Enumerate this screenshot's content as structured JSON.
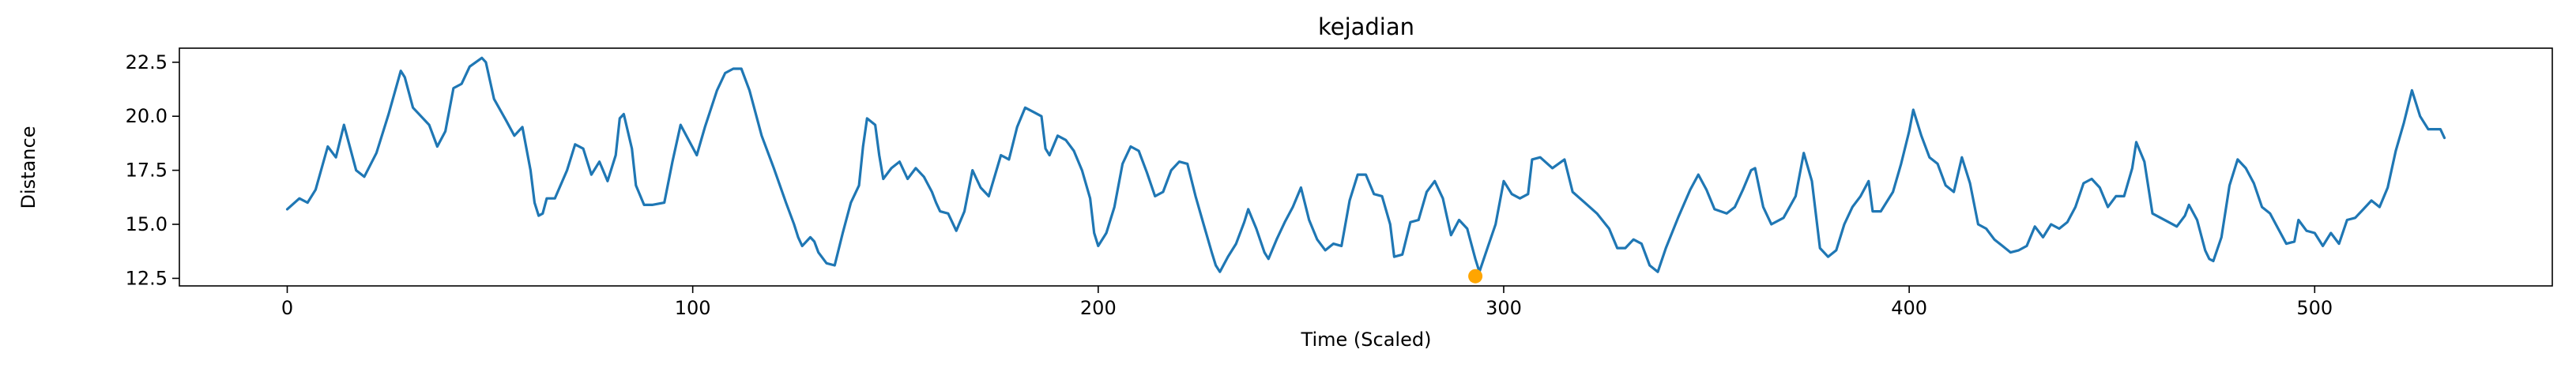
{
  "chart_data": {
    "type": "line",
    "title": "kejadian",
    "xlabel": "Time (Scaled)",
    "ylabel": "Distance",
    "xlim": [
      -26.6,
      558.6
    ],
    "ylim": [
      12.15,
      23.15
    ],
    "xticks": [
      0,
      100,
      200,
      300,
      400,
      500
    ],
    "yticks": [
      12.5,
      15.0,
      17.5,
      20.0,
      22.5
    ],
    "ytick_labels": [
      "12.5",
      "15.0",
      "17.5",
      "20.0",
      "22.5"
    ],
    "grid": false,
    "line_color": "#1f77b4",
    "marker_color": "#ffa500",
    "highlight": {
      "x": 293,
      "y": 12.6
    },
    "series": [
      {
        "points": [
          [
            0,
            15.7
          ],
          [
            3,
            16.2
          ],
          [
            5,
            16.0
          ],
          [
            7,
            16.6
          ],
          [
            10,
            18.6
          ],
          [
            12,
            18.1
          ],
          [
            14,
            19.6
          ],
          [
            17,
            17.5
          ],
          [
            19,
            17.2
          ],
          [
            22,
            18.3
          ],
          [
            25,
            20.1
          ],
          [
            28,
            22.1
          ],
          [
            29,
            21.8
          ],
          [
            31,
            20.4
          ],
          [
            35,
            19.6
          ],
          [
            37,
            18.6
          ],
          [
            39,
            19.3
          ],
          [
            41,
            21.3
          ],
          [
            43,
            21.5
          ],
          [
            45,
            22.3
          ],
          [
            48,
            22.7
          ],
          [
            49,
            22.5
          ],
          [
            51,
            20.8
          ],
          [
            54,
            19.8
          ],
          [
            56,
            19.1
          ],
          [
            58,
            19.5
          ],
          [
            60,
            17.5
          ],
          [
            61,
            16.0
          ],
          [
            62,
            15.4
          ],
          [
            63,
            15.5
          ],
          [
            64,
            16.2
          ],
          [
            66,
            16.2
          ],
          [
            69,
            17.5
          ],
          [
            71,
            18.7
          ],
          [
            73,
            18.5
          ],
          [
            75,
            17.3
          ],
          [
            77,
            17.9
          ],
          [
            79,
            17.0
          ],
          [
            81,
            18.2
          ],
          [
            82,
            19.9
          ],
          [
            83,
            20.1
          ],
          [
            85,
            18.5
          ],
          [
            86,
            16.8
          ],
          [
            88,
            15.9
          ],
          [
            90,
            15.9
          ],
          [
            93,
            16.0
          ],
          [
            95,
            17.9
          ],
          [
            97,
            19.6
          ],
          [
            99,
            18.9
          ],
          [
            101,
            18.2
          ],
          [
            103,
            19.5
          ],
          [
            106,
            21.2
          ],
          [
            108,
            22.0
          ],
          [
            110,
            22.2
          ],
          [
            112,
            22.2
          ],
          [
            114,
            21.2
          ],
          [
            117,
            19.1
          ],
          [
            120,
            17.6
          ],
          [
            123,
            16.0
          ],
          [
            125,
            15.0
          ],
          [
            126,
            14.4
          ],
          [
            127,
            14.0
          ],
          [
            129,
            14.4
          ],
          [
            130,
            14.2
          ],
          [
            131,
            13.7
          ],
          [
            133,
            13.2
          ],
          [
            135,
            13.1
          ],
          [
            137,
            14.6
          ],
          [
            139,
            16.0
          ],
          [
            141,
            16.8
          ],
          [
            142,
            18.6
          ],
          [
            143,
            19.9
          ],
          [
            145,
            19.6
          ],
          [
            146,
            18.2
          ],
          [
            147,
            17.1
          ],
          [
            149,
            17.6
          ],
          [
            151,
            17.9
          ],
          [
            153,
            17.1
          ],
          [
            155,
            17.6
          ],
          [
            157,
            17.2
          ],
          [
            159,
            16.5
          ],
          [
            160,
            16.0
          ],
          [
            161,
            15.6
          ],
          [
            163,
            15.5
          ],
          [
            165,
            14.7
          ],
          [
            167,
            15.6
          ],
          [
            169,
            17.5
          ],
          [
            171,
            16.7
          ],
          [
            173,
            16.3
          ],
          [
            176,
            18.2
          ],
          [
            178,
            18.0
          ],
          [
            180,
            19.5
          ],
          [
            182,
            20.4
          ],
          [
            184,
            20.2
          ],
          [
            186,
            20.0
          ],
          [
            187,
            18.5
          ],
          [
            188,
            18.2
          ],
          [
            190,
            19.1
          ],
          [
            192,
            18.9
          ],
          [
            194,
            18.4
          ],
          [
            196,
            17.5
          ],
          [
            198,
            16.2
          ],
          [
            199,
            14.6
          ],
          [
            200,
            14.0
          ],
          [
            202,
            14.6
          ],
          [
            204,
            15.8
          ],
          [
            206,
            17.8
          ],
          [
            208,
            18.6
          ],
          [
            210,
            18.4
          ],
          [
            212,
            17.4
          ],
          [
            214,
            16.3
          ],
          [
            216,
            16.5
          ],
          [
            218,
            17.5
          ],
          [
            220,
            17.9
          ],
          [
            222,
            17.8
          ],
          [
            224,
            16.3
          ],
          [
            226,
            15.0
          ],
          [
            228,
            13.7
          ],
          [
            229,
            13.1
          ],
          [
            230,
            12.8
          ],
          [
            232,
            13.5
          ],
          [
            234,
            14.1
          ],
          [
            236,
            15.1
          ],
          [
            237,
            15.7
          ],
          [
            239,
            14.8
          ],
          [
            241,
            13.7
          ],
          [
            242,
            13.4
          ],
          [
            244,
            14.3
          ],
          [
            246,
            15.1
          ],
          [
            248,
            15.8
          ],
          [
            250,
            16.7
          ],
          [
            252,
            15.2
          ],
          [
            254,
            14.3
          ],
          [
            256,
            13.8
          ],
          [
            258,
            14.1
          ],
          [
            260,
            14.0
          ],
          [
            262,
            16.1
          ],
          [
            264,
            17.3
          ],
          [
            266,
            17.3
          ],
          [
            268,
            16.4
          ],
          [
            270,
            16.3
          ],
          [
            272,
            15.0
          ],
          [
            273,
            13.5
          ],
          [
            275,
            13.6
          ],
          [
            277,
            15.1
          ],
          [
            279,
            15.2
          ],
          [
            281,
            16.5
          ],
          [
            283,
            17.0
          ],
          [
            285,
            16.2
          ],
          [
            287,
            14.5
          ],
          [
            289,
            15.2
          ],
          [
            291,
            14.8
          ],
          [
            293,
            13.4
          ],
          [
            294,
            12.8
          ],
          [
            296,
            13.9
          ],
          [
            298,
            15.0
          ],
          [
            300,
            17.0
          ],
          [
            302,
            16.4
          ],
          [
            304,
            16.2
          ],
          [
            306,
            16.4
          ],
          [
            307,
            18.0
          ],
          [
            309,
            18.1
          ],
          [
            312,
            17.6
          ],
          [
            315,
            18.0
          ],
          [
            317,
            16.5
          ],
          [
            320,
            16.0
          ],
          [
            323,
            15.5
          ],
          [
            326,
            14.8
          ],
          [
            328,
            13.9
          ],
          [
            330,
            13.9
          ],
          [
            332,
            14.3
          ],
          [
            334,
            14.1
          ],
          [
            336,
            13.1
          ],
          [
            338,
            12.8
          ],
          [
            340,
            13.9
          ],
          [
            343,
            15.3
          ],
          [
            346,
            16.6
          ],
          [
            348,
            17.3
          ],
          [
            350,
            16.6
          ],
          [
            352,
            15.7
          ],
          [
            355,
            15.5
          ],
          [
            357,
            15.8
          ],
          [
            359,
            16.6
          ],
          [
            361,
            17.5
          ],
          [
            362,
            17.6
          ],
          [
            364,
            15.8
          ],
          [
            366,
            15.0
          ],
          [
            369,
            15.3
          ],
          [
            372,
            16.3
          ],
          [
            374,
            18.3
          ],
          [
            376,
            17.0
          ],
          [
            378,
            13.9
          ],
          [
            380,
            13.5
          ],
          [
            382,
            13.8
          ],
          [
            384,
            15.0
          ],
          [
            386,
            15.8
          ],
          [
            388,
            16.3
          ],
          [
            390,
            17.0
          ],
          [
            391,
            15.6
          ],
          [
            393,
            15.6
          ],
          [
            396,
            16.5
          ],
          [
            398,
            17.8
          ],
          [
            400,
            19.3
          ],
          [
            401,
            20.3
          ],
          [
            403,
            19.1
          ],
          [
            405,
            18.1
          ],
          [
            407,
            17.8
          ],
          [
            409,
            16.8
          ],
          [
            411,
            16.5
          ],
          [
            413,
            18.1
          ],
          [
            415,
            16.9
          ],
          [
            417,
            15.0
          ],
          [
            419,
            14.8
          ],
          [
            421,
            14.3
          ],
          [
            423,
            14.0
          ],
          [
            425,
            13.7
          ],
          [
            427,
            13.8
          ],
          [
            429,
            14.0
          ],
          [
            431,
            14.9
          ],
          [
            433,
            14.4
          ],
          [
            435,
            15.0
          ],
          [
            437,
            14.8
          ],
          [
            439,
            15.1
          ],
          [
            441,
            15.8
          ],
          [
            443,
            16.9
          ],
          [
            445,
            17.1
          ],
          [
            447,
            16.7
          ],
          [
            449,
            15.8
          ],
          [
            451,
            16.3
          ],
          [
            453,
            16.3
          ],
          [
            455,
            17.6
          ],
          [
            456,
            18.8
          ],
          [
            458,
            17.9
          ],
          [
            460,
            15.5
          ],
          [
            462,
            15.3
          ],
          [
            464,
            15.1
          ],
          [
            466,
            14.9
          ],
          [
            468,
            15.4
          ],
          [
            469,
            15.9
          ],
          [
            471,
            15.2
          ],
          [
            473,
            13.8
          ],
          [
            474,
            13.4
          ],
          [
            475,
            13.3
          ],
          [
            477,
            14.4
          ],
          [
            479,
            16.8
          ],
          [
            481,
            18.0
          ],
          [
            483,
            17.6
          ],
          [
            485,
            16.9
          ],
          [
            487,
            15.8
          ],
          [
            489,
            15.5
          ],
          [
            491,
            14.8
          ],
          [
            493,
            14.1
          ],
          [
            495,
            14.2
          ],
          [
            496,
            15.2
          ],
          [
            498,
            14.7
          ],
          [
            500,
            14.6
          ],
          [
            502,
            14.0
          ],
          [
            504,
            14.6
          ],
          [
            506,
            14.1
          ],
          [
            508,
            15.2
          ],
          [
            510,
            15.3
          ],
          [
            512,
            15.7
          ],
          [
            514,
            16.1
          ],
          [
            516,
            15.8
          ],
          [
            518,
            16.7
          ],
          [
            520,
            18.4
          ],
          [
            522,
            19.7
          ],
          [
            524,
            21.2
          ],
          [
            526,
            20.0
          ],
          [
            528,
            19.4
          ],
          [
            531,
            19.4
          ],
          [
            532,
            19.0
          ]
        ]
      }
    ]
  }
}
